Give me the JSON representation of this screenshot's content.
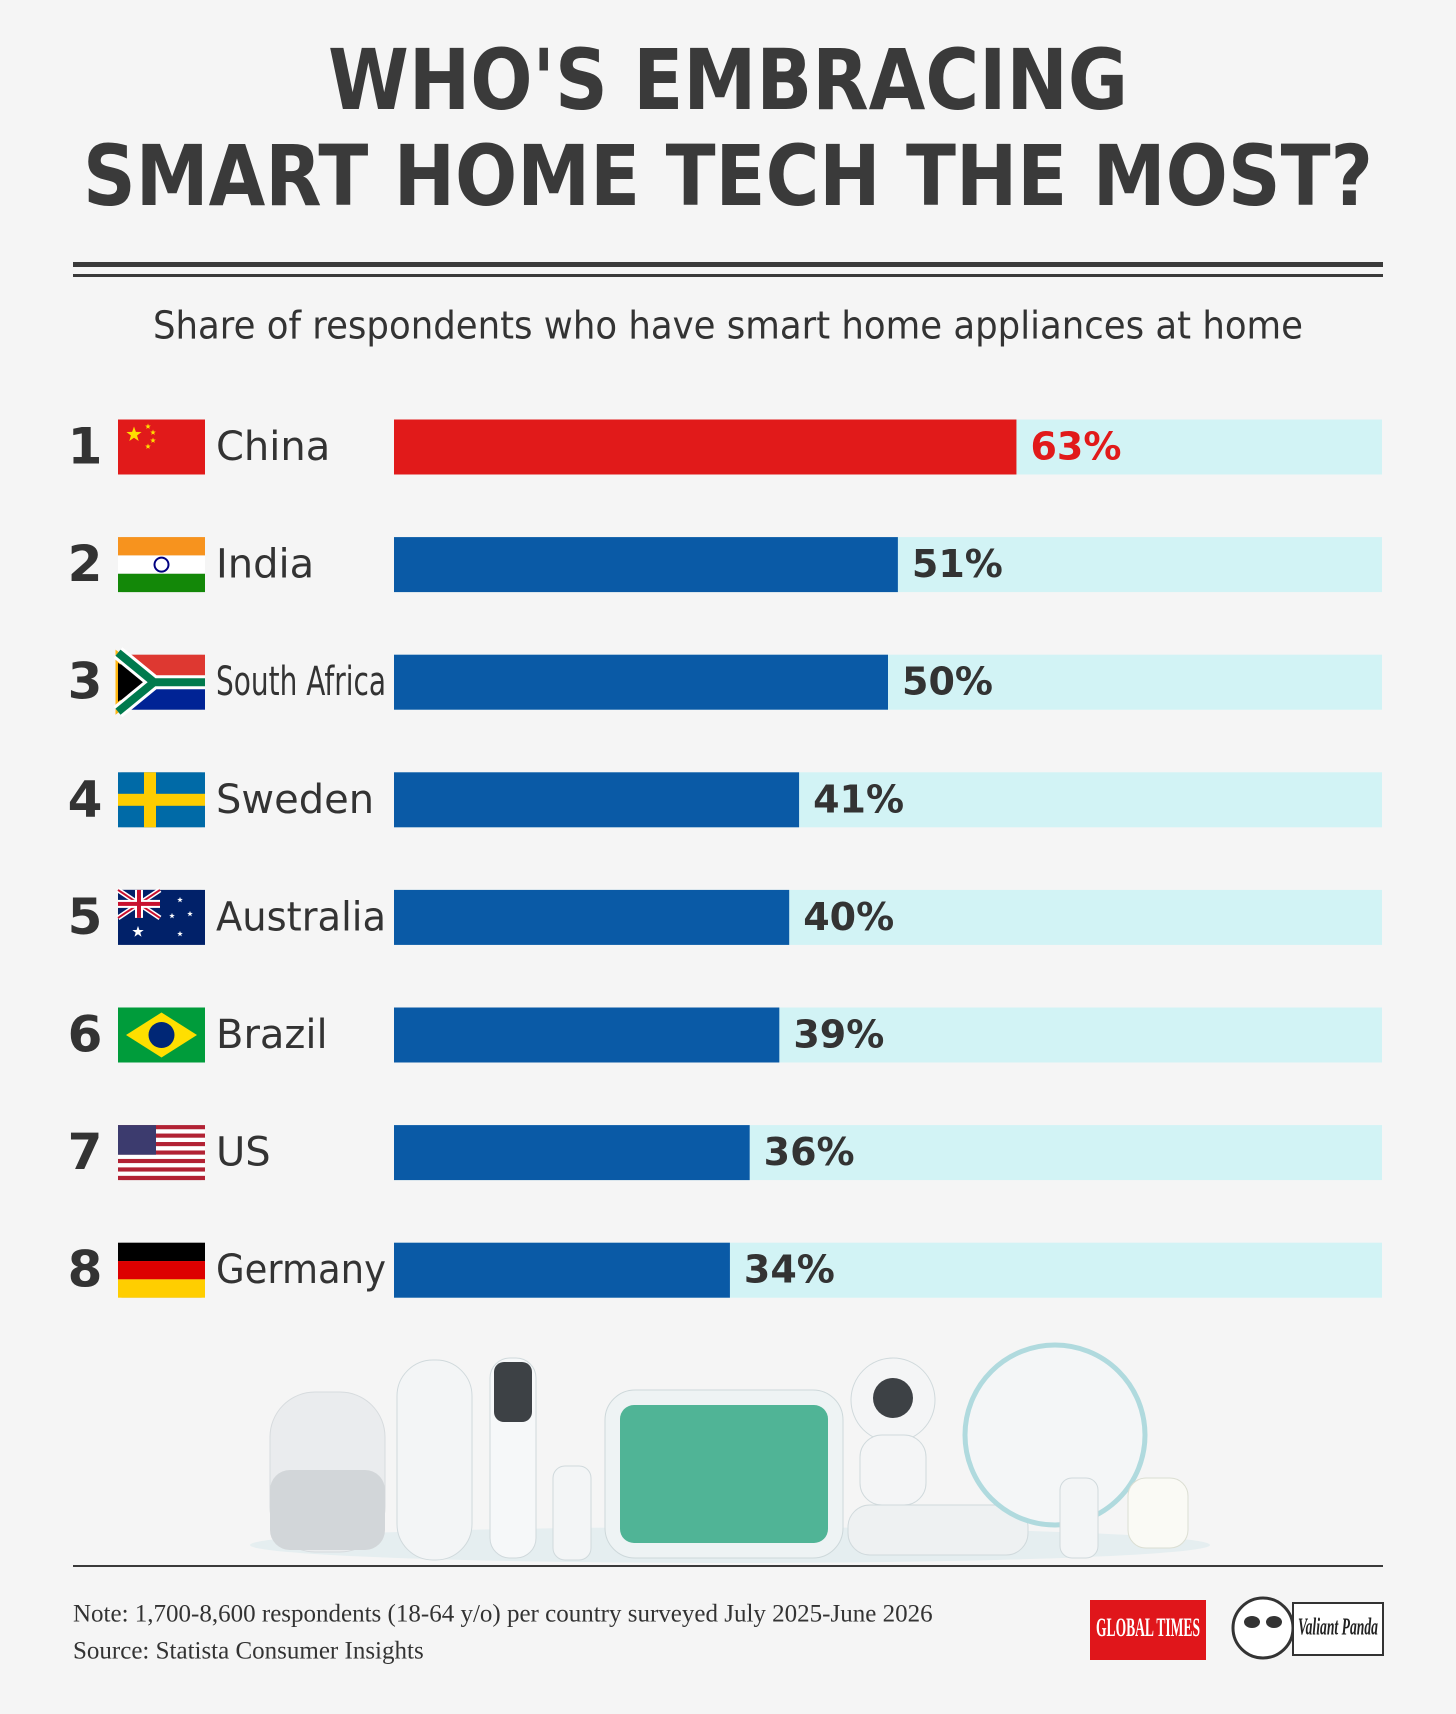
{
  "chart_data": {
    "type": "bar",
    "orientation": "horizontal",
    "title": [
      "WHO'S EMBRACING",
      "SMART HOME TECH THE MOST?"
    ],
    "subtitle": "Share of respondents who have smart home appliances at home",
    "ranks": [
      1,
      2,
      3,
      4,
      5,
      6,
      7,
      8
    ],
    "categories": [
      "China",
      "India",
      "South Africa",
      "Sweden",
      "Australia",
      "Brazil",
      "US",
      "Germany"
    ],
    "values": [
      63,
      51,
      50,
      41,
      40,
      39,
      36,
      34
    ],
    "value_labels": [
      "63%",
      "51%",
      "50%",
      "41%",
      "40%",
      "39%",
      "36%",
      "34%"
    ],
    "colors": [
      "#e11a1a",
      "#0a5aa6",
      "#0a5aa6",
      "#0a5aa6",
      "#0a5aa6",
      "#0a5aa6",
      "#0a5aa6",
      "#0a5aa6"
    ],
    "value_label_colors": [
      "#e11a1a",
      "#333333",
      "#333333",
      "#333333",
      "#333333",
      "#333333",
      "#333333",
      "#333333"
    ],
    "track_color": "#d2f3f5",
    "xlim": [
      0,
      100
    ],
    "note": "Note: 1,700-8,600 respondents (18-64 y/o) per country surveyed July 2025-June 2026",
    "source": "Source: Statista Consumer Insights",
    "logos": [
      "GLOBAL TIMES",
      "Valiant Panda"
    ]
  }
}
